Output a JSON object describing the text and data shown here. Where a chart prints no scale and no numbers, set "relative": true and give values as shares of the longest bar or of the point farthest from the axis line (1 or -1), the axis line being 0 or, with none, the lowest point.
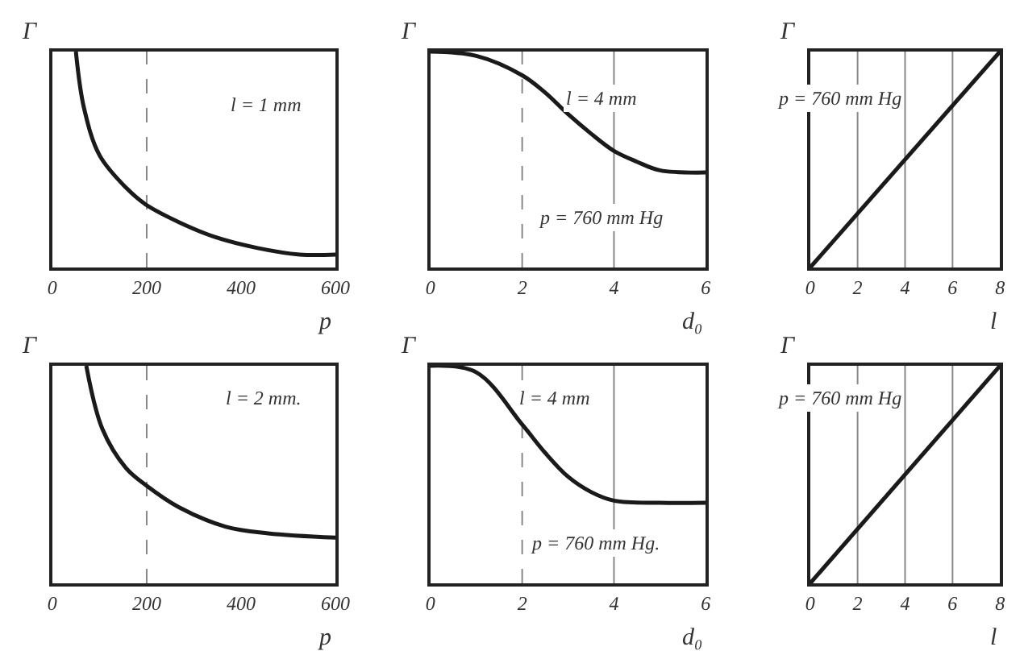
{
  "chart_data": [
    {
      "type": "line",
      "relative": true,
      "ylabel": "Γ",
      "xlabel": "p",
      "annotations": [
        "l = 1 mm"
      ],
      "x": [
        50,
        67,
        100,
        156,
        199,
        268,
        346,
        435,
        524,
        600
      ],
      "series": [
        {
          "color": "#1a1a1a",
          "values": [
            1,
            0.74,
            0.52,
            0.37,
            0.29,
            0.21,
            0.14,
            0.09,
            0.06,
            0.06
          ]
        }
      ],
      "xlim": [
        0,
        600
      ],
      "xticks": [
        0,
        200,
        400,
        600
      ],
      "ref_lines": [
        {
          "axis": "x",
          "value": 200,
          "line_style": "dashed"
        }
      ]
    },
    {
      "type": "line",
      "relative": true,
      "ylabel": "Γ",
      "xlabel": "d₀",
      "annotations": [
        "l = 4 mm",
        "p = 760 mm Hg"
      ],
      "x": [
        0,
        1,
        2,
        2.5,
        3,
        3.5,
        4,
        4.5,
        5,
        6
      ],
      "series": [
        {
          "color": "#1a1a1a",
          "values": [
            1,
            0.98,
            0.89,
            0.81,
            0.71,
            0.62,
            0.54,
            0.49,
            0.45,
            0.44
          ]
        }
      ],
      "xlim": [
        0,
        6
      ],
      "xticks": [
        0,
        2,
        4,
        6
      ],
      "ref_lines": [
        {
          "axis": "x",
          "value": 2,
          "line_style": "dashed"
        },
        {
          "axis": "x",
          "value": 4,
          "line_style": "solid"
        }
      ]
    },
    {
      "type": "line",
      "relative": true,
      "ylabel": "Γ",
      "xlabel": "l",
      "annotations": [
        "p = 760 mm Hg"
      ],
      "x": [
        0,
        8
      ],
      "series": [
        {
          "color": "#1a1a1a",
          "values": [
            0,
            1
          ]
        }
      ],
      "xlim": [
        0,
        8
      ],
      "xticks": [
        0,
        2,
        4,
        6,
        8
      ],
      "ref_lines": [
        {
          "axis": "x",
          "value": 2,
          "line_style": "solid"
        },
        {
          "axis": "x",
          "value": 4,
          "line_style": "solid"
        },
        {
          "axis": "x",
          "value": 6,
          "line_style": "solid"
        }
      ]
    },
    {
      "type": "line",
      "relative": true,
      "ylabel": "Γ",
      "xlabel": "p",
      "annotations": [
        "l = 2 mm."
      ],
      "x": [
        72,
        106,
        156,
        199,
        268,
        368,
        457,
        600
      ],
      "series": [
        {
          "color": "#1a1a1a",
          "values": [
            1,
            0.71,
            0.53,
            0.45,
            0.35,
            0.26,
            0.23,
            0.21
          ]
        }
      ],
      "xlim": [
        0,
        600
      ],
      "xticks": [
        0,
        200,
        400,
        600
      ],
      "ref_lines": [
        {
          "axis": "x",
          "value": 200,
          "line_style": "dashed"
        }
      ]
    },
    {
      "type": "line",
      "relative": true,
      "ylabel": "Γ",
      "xlabel": "d₀",
      "annotations": [
        "l = 4 mm",
        "p = 760 mm Hg."
      ],
      "x": [
        0,
        1,
        2,
        2.5,
        3,
        3.5,
        4,
        5,
        6
      ],
      "series": [
        {
          "color": "#1a1a1a",
          "values": [
            1,
            0.97,
            0.73,
            0.6,
            0.49,
            0.42,
            0.38,
            0.37,
            0.37
          ]
        }
      ],
      "xlim": [
        0,
        6
      ],
      "xticks": [
        0,
        2,
        4,
        6
      ],
      "ref_lines": [
        {
          "axis": "x",
          "value": 2,
          "line_style": "dashed"
        },
        {
          "axis": "x",
          "value": 4,
          "line_style": "solid"
        }
      ]
    },
    {
      "type": "line",
      "relative": true,
      "ylabel": "Γ",
      "xlabel": "l",
      "annotations": [
        "p = 760 mm Hg"
      ],
      "x": [
        0,
        8
      ],
      "series": [
        {
          "color": "#1a1a1a",
          "values": [
            0,
            1
          ]
        }
      ],
      "xlim": [
        0,
        8
      ],
      "xticks": [
        0,
        2,
        4,
        6,
        8
      ],
      "ref_lines": [
        {
          "axis": "x",
          "value": 2,
          "line_style": "solid"
        },
        {
          "axis": "x",
          "value": 4,
          "line_style": "solid"
        },
        {
          "axis": "x",
          "value": 6,
          "line_style": "solid"
        }
      ]
    }
  ]
}
